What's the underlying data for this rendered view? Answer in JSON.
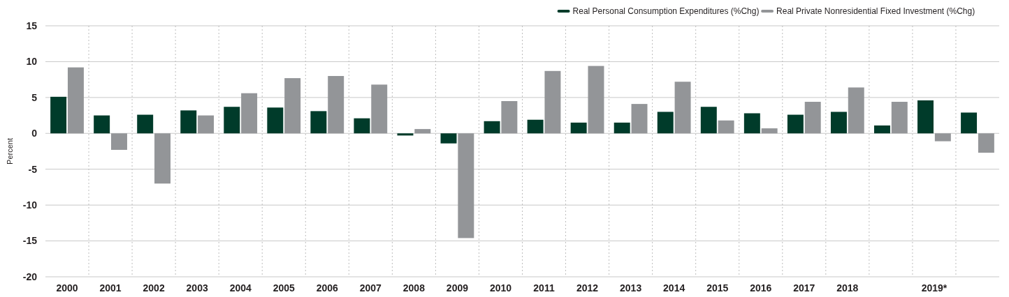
{
  "chart_data": {
    "type": "bar",
    "ylabel": "Percent",
    "categories": [
      "2000",
      "2001",
      "2002",
      "2003",
      "2004",
      "2005",
      "2006",
      "2007",
      "2008",
      "2009",
      "2010",
      "2011",
      "2012",
      "2013",
      "2014",
      "2015",
      "2016",
      "2017",
      "2018",
      null,
      "2019*",
      null
    ],
    "series": [
      {
        "name": "Real Personal Consumption Expenditures (%Chg)",
        "color": "#003b2a",
        "values": [
          5.1,
          2.5,
          2.6,
          3.2,
          3.7,
          3.6,
          3.1,
          2.1,
          -0.3,
          -1.4,
          1.7,
          1.9,
          1.5,
          1.5,
          3.0,
          3.7,
          2.8,
          2.6,
          3.0,
          1.1,
          4.6,
          2.9
        ]
      },
      {
        "name": "Real Private Nonresidential Fixed Investment (%Chg)",
        "color": "#939598",
        "values": [
          9.2,
          -2.3,
          -7.0,
          2.5,
          5.6,
          7.7,
          8.0,
          6.8,
          0.6,
          -14.6,
          4.5,
          8.7,
          9.4,
          4.1,
          7.2,
          1.8,
          0.7,
          4.4,
          6.4,
          4.4,
          -1.1,
          -2.7
        ]
      }
    ],
    "ylim": [
      -20,
      15
    ],
    "yticks": [
      -20,
      -15,
      -10,
      -5,
      0,
      5,
      10,
      15
    ],
    "grid": true,
    "legend": "top right"
  }
}
